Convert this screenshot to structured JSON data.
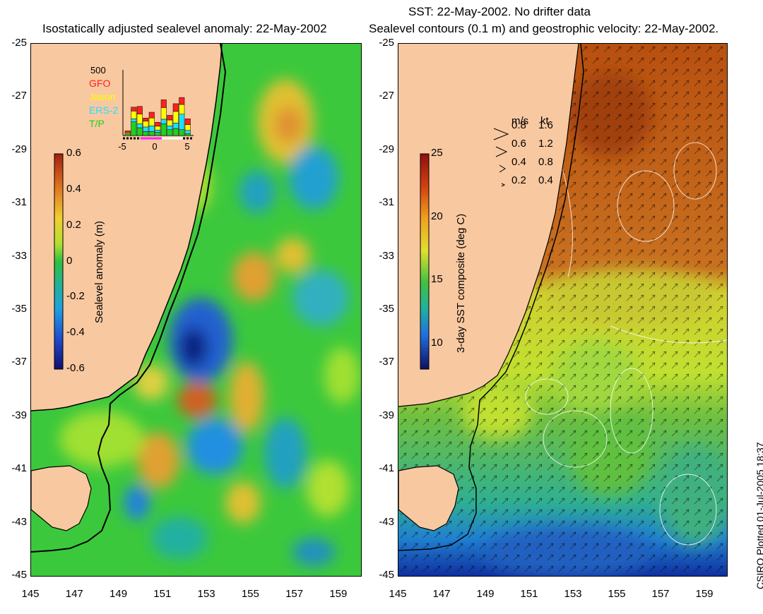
{
  "left_panel": {
    "title": "Isostatically adjusted sealevel anomaly: 22-May-2002",
    "colorbar": {
      "label": "Sealevel anomaly (m)",
      "ticks": [
        "0.6",
        "0.4",
        "0.2",
        "0",
        "-0.2",
        "-0.4",
        "-0.6"
      ],
      "range": [
        -0.6,
        0.6
      ]
    },
    "histogram": {
      "ymax_label": "500",
      "legend": [
        {
          "name": "GFO",
          "color": "#ff2020"
        },
        {
          "name": "Jason",
          "color": "#ffff00"
        },
        {
          "name": "ERS-2",
          "color": "#20e0ff"
        },
        {
          "name": "T/P",
          "color": "#20d020"
        }
      ],
      "x_ticks": [
        "-5",
        "0",
        "5"
      ]
    }
  },
  "right_panel": {
    "title_line1": "SST: 22-May-2002. No drifter data",
    "title_line2": "Sealevel contours (0.1 m) and geostrophic velocity: 22-May-2002.",
    "colorbar": {
      "label": "3-day SST composite (deg C)",
      "ticks": [
        "25",
        "20",
        "15",
        "10"
      ],
      "range": [
        8,
        25
      ]
    },
    "velocity_key": {
      "header_ms": "m/s",
      "header_kt": "kt",
      "rows": [
        {
          "ms": "0.8",
          "kt": "1.6"
        },
        {
          "ms": "0.6",
          "kt": "1.2"
        },
        {
          "ms": "0.4",
          "kt": "0.8"
        },
        {
          "ms": "0.2",
          "kt": "0.4"
        }
      ]
    }
  },
  "axes": {
    "y_ticks": [
      "-25",
      "-27",
      "-29",
      "-31",
      "-33",
      "-35",
      "-37",
      "-39",
      "-41",
      "-43",
      "-45"
    ],
    "x_ticks": [
      "145",
      "147",
      "149",
      "151",
      "153",
      "155",
      "157",
      "159"
    ],
    "lon_range": [
      145,
      160
    ],
    "lat_range": [
      -45,
      -25
    ]
  },
  "credit": "CSIRO Plotted 01-Jul-2005 18:37",
  "colors": {
    "land": "#f8c8a0",
    "sea_base": "#40d040",
    "coastline": "#000000"
  }
}
